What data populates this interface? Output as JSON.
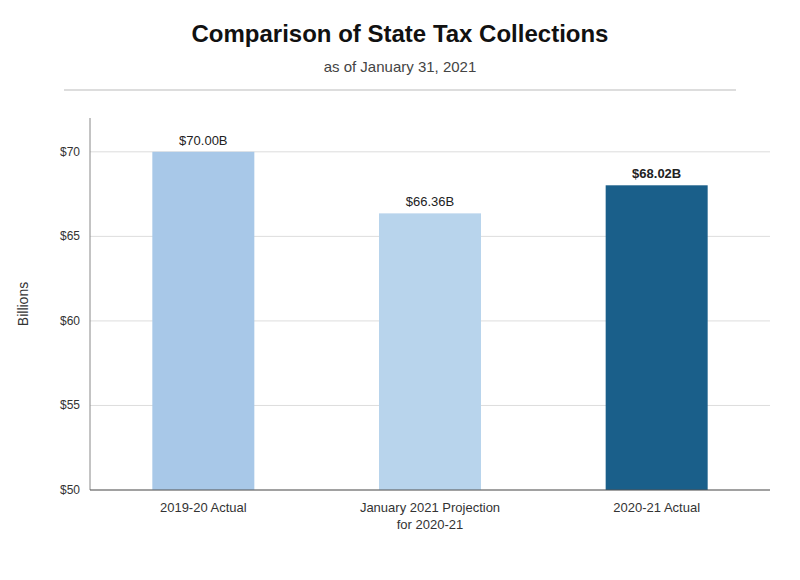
{
  "chart_data": {
    "type": "bar",
    "title": "Comparison of State Tax Collections",
    "subtitle": "as of January 31, 2021",
    "categories": [
      "2019-20 Actual",
      "January 2021 Projection\nfor 2020-21",
      "2020-21 Actual"
    ],
    "values": [
      70.0,
      66.36,
      68.02
    ],
    "value_labels": [
      "$70.00B",
      "$66.36B",
      "$68.02B"
    ],
    "data_labels": true,
    "colors": [
      "#a8c8e8",
      "#b8d4ec",
      "#1a5f8a"
    ],
    "ylabel": "Billions",
    "ylim": [
      50,
      72
    ],
    "yticks": [
      {
        "value": 50,
        "label": "$50"
      },
      {
        "value": 55,
        "label": "$55"
      },
      {
        "value": 60,
        "label": "$60"
      },
      {
        "value": 65,
        "label": "$65"
      },
      {
        "value": 70,
        "label": "$70"
      }
    ],
    "grid": true
  }
}
